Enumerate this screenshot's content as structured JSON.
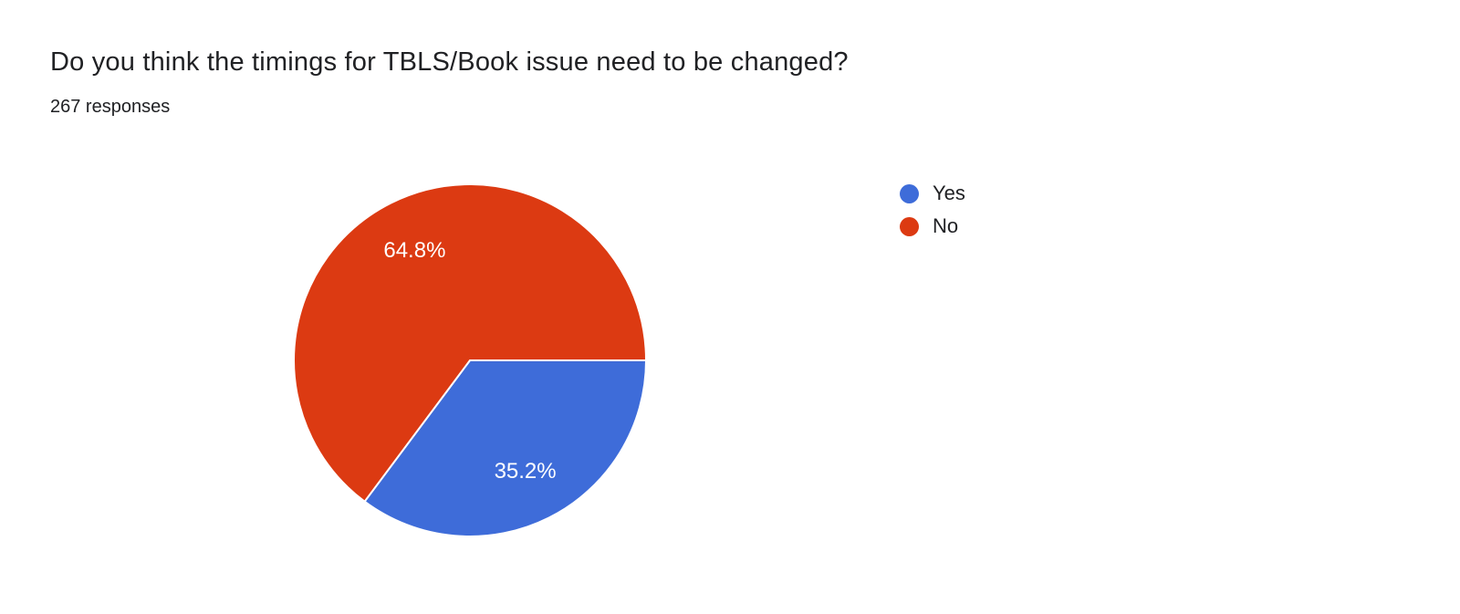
{
  "header": {
    "title": "Do you think the timings for TBLS/Book issue need to be changed?",
    "responses": "267 responses"
  },
  "chart_data": {
    "type": "pie",
    "title": "Do you think the timings for TBLS/Book issue need to be changed?",
    "subtitle": "267 responses",
    "total_responses": 267,
    "labels": [
      "Yes",
      "No"
    ],
    "values": [
      35.2,
      64.8
    ],
    "display_labels": [
      "35.2%",
      "64.8%"
    ],
    "colors": [
      "#3e6cd9",
      "#dc3a12"
    ],
    "label_color": "#ffffff",
    "start_angle_deg": 0,
    "direction": "clockwise",
    "legend_position": "right"
  }
}
